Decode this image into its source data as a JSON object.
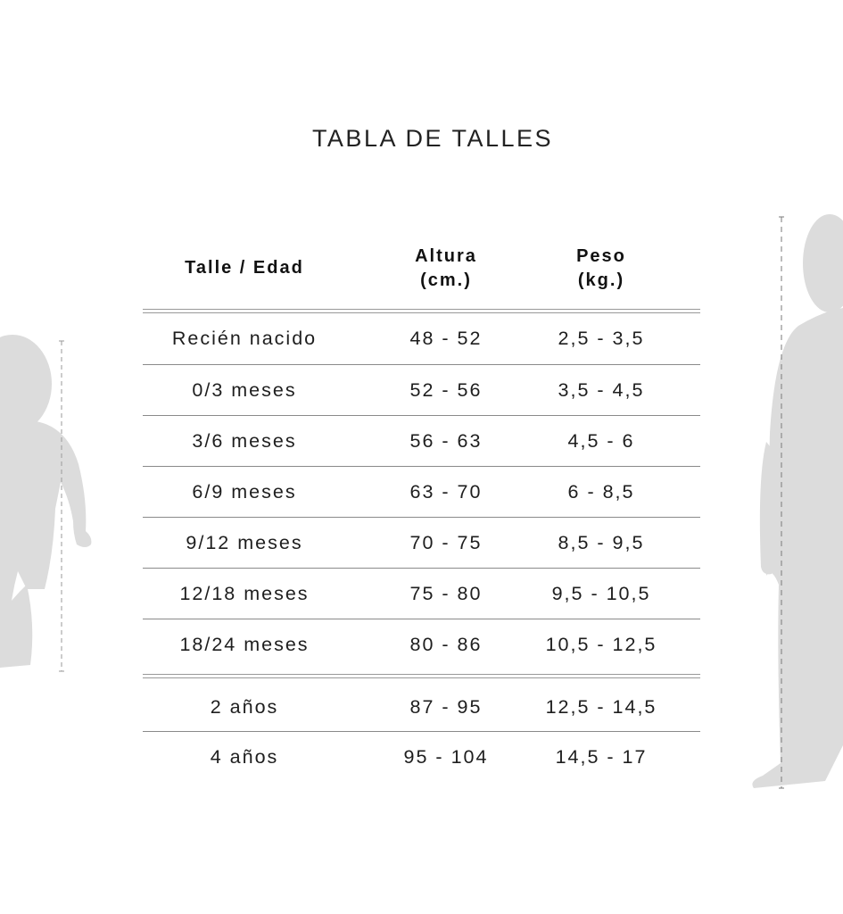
{
  "title": "TABLA DE TALLES",
  "headers": {
    "col1": "Talle / Edad",
    "col2_line1": "Altura",
    "col2_line2": "(cm.)",
    "col3_line1": "Peso",
    "col3_line2": "(kg.)"
  },
  "baby_rows": [
    {
      "size": "Recién nacido",
      "height": "48 - 52",
      "weight": "2,5 - 3,5"
    },
    {
      "size": "0/3 meses",
      "height": "52 - 56",
      "weight": "3,5 - 4,5"
    },
    {
      "size": "3/6 meses",
      "height": "56 - 63",
      "weight": "4,5 - 6"
    },
    {
      "size": "6/9 meses",
      "height": "63 - 70",
      "weight": "6 - 8,5"
    },
    {
      "size": "9/12 meses",
      "height": "70 - 75",
      "weight": "8,5 - 9,5"
    },
    {
      "size": "12/18 meses",
      "height": "75 - 80",
      "weight": "9,5 - 10,5"
    },
    {
      "size": "18/24 meses",
      "height": "80 - 86",
      "weight": "10,5 - 12,5"
    }
  ],
  "kid_rows": [
    {
      "size": "2 años",
      "height": "87 - 95",
      "weight": "12,5 - 14,5"
    },
    {
      "size": "4 años",
      "height": "95 - 104",
      "weight": "14,5 - 17"
    }
  ],
  "colors": {
    "silhouette": "#dcdcdc",
    "rule": "#8a8a8a",
    "text": "#1a1a1a"
  },
  "icons": [
    "baby-silhouette-icon",
    "child-silhouette-icon"
  ]
}
